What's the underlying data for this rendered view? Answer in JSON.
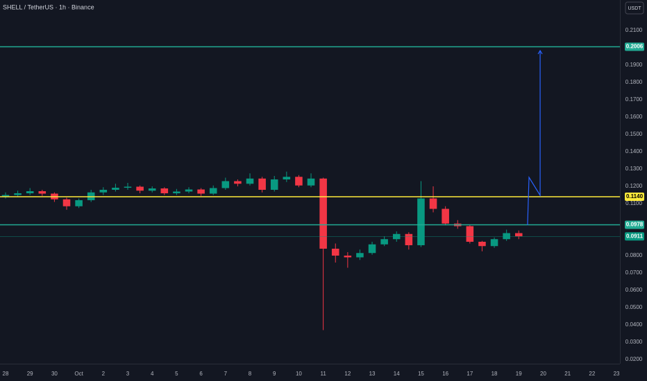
{
  "chart_data": {
    "type": "candlestick",
    "title": "SHELL / TetherUS · 1h · Binance",
    "currency_button": "USDT",
    "up_color": "#089981",
    "down_color": "#f23645",
    "grid": false,
    "candles": {
      "x": [
        0,
        0.5,
        1,
        1.5,
        2,
        2.5,
        3,
        3.5,
        4,
        4.5,
        5,
        5.5,
        6,
        6.5,
        7,
        7.5,
        8,
        8.5,
        9,
        9.5,
        10,
        10.5,
        11,
        11.5,
        12,
        12.5,
        13,
        13.5,
        14,
        14.5,
        15,
        15.5,
        16,
        16.5,
        17,
        17.5,
        18,
        18.5,
        19,
        19.5,
        20,
        20.5,
        21
      ],
      "open": [
        0.114,
        0.115,
        0.116,
        0.1172,
        0.1158,
        0.1125,
        0.1085,
        0.112,
        0.1165,
        0.118,
        0.1192,
        0.1198,
        0.1175,
        0.1188,
        0.116,
        0.117,
        0.1182,
        0.1158,
        0.119,
        0.123,
        0.1215,
        0.1245,
        0.118,
        0.124,
        0.1255,
        0.1205,
        0.1245,
        0.084,
        0.08,
        0.079,
        0.0815,
        0.0865,
        0.0895,
        0.0925,
        0.086,
        0.113,
        0.107,
        0.0985,
        0.097,
        0.088,
        0.0855,
        0.0895,
        0.093
      ],
      "high": [
        0.1165,
        0.1175,
        0.119,
        0.118,
        0.1165,
        0.1135,
        0.113,
        0.118,
        0.1195,
        0.1215,
        0.122,
        0.1205,
        0.12,
        0.1195,
        0.1185,
        0.1195,
        0.119,
        0.1205,
        0.125,
        0.124,
        0.1275,
        0.1255,
        0.126,
        0.1285,
        0.1265,
        0.1275,
        0.125,
        0.087,
        0.082,
        0.0835,
        0.088,
        0.091,
        0.094,
        0.0935,
        0.123,
        0.12,
        0.1085,
        0.1005,
        0.098,
        0.0885,
        0.0905,
        0.095,
        0.0945
      ],
      "low": [
        0.113,
        0.114,
        0.115,
        0.1145,
        0.111,
        0.1065,
        0.1075,
        0.111,
        0.115,
        0.117,
        0.118,
        0.116,
        0.1165,
        0.115,
        0.115,
        0.116,
        0.1145,
        0.115,
        0.118,
        0.12,
        0.1205,
        0.1165,
        0.117,
        0.1225,
        0.1195,
        0.1195,
        0.037,
        0.076,
        0.073,
        0.0775,
        0.0805,
        0.0855,
        0.088,
        0.0835,
        0.085,
        0.105,
        0.0975,
        0.0955,
        0.087,
        0.0825,
        0.0845,
        0.0885,
        0.0895
      ],
      "close": [
        0.115,
        0.116,
        0.1172,
        0.1158,
        0.1125,
        0.1085,
        0.112,
        0.1165,
        0.118,
        0.1192,
        0.1198,
        0.1175,
        0.1188,
        0.116,
        0.117,
        0.1182,
        0.1158,
        0.119,
        0.123,
        0.1215,
        0.1245,
        0.118,
        0.124,
        0.1255,
        0.1205,
        0.1245,
        0.084,
        0.08,
        0.079,
        0.0815,
        0.0865,
        0.0895,
        0.0925,
        0.086,
        0.113,
        0.107,
        0.0985,
        0.097,
        0.088,
        0.0855,
        0.0895,
        0.093,
        0.0911
      ]
    },
    "levels": [
      {
        "value": 0.2006,
        "label": "0.2006",
        "color": "#22ab94",
        "text_color": "#ffffff",
        "style": "solid"
      },
      {
        "value": 0.114,
        "label": "0.1140",
        "color": "#ffeb3b",
        "text_color": "#000000",
        "style": "solid"
      },
      {
        "value": 0.0978,
        "label": "0.0978",
        "color": "#22ab94",
        "text_color": "#ffffff",
        "style": "solid"
      },
      {
        "value": 0.0911,
        "label": "0.0911",
        "color": "#089981",
        "text_color": "#ffffff",
        "style": "thin"
      }
    ],
    "projection": {
      "x": [
        21.36,
        21.42,
        21.875,
        21.875
      ],
      "y": [
        0.0976,
        0.1252,
        0.1148,
        0.1984
      ],
      "color": "#2962ff"
    },
    "xlim": [
      -0.227,
      25.14
    ],
    "xticks": [
      {
        "value": 0,
        "label": "28"
      },
      {
        "value": 1,
        "label": "29"
      },
      {
        "value": 2,
        "label": "30"
      },
      {
        "value": 3,
        "label": "Oct"
      },
      {
        "value": 4,
        "label": "2"
      },
      {
        "value": 5,
        "label": "3"
      },
      {
        "value": 6,
        "label": "4"
      },
      {
        "value": 7,
        "label": "5"
      },
      {
        "value": 8,
        "label": "6"
      },
      {
        "value": 9,
        "label": "7"
      },
      {
        "value": 10,
        "label": "8"
      },
      {
        "value": 11,
        "label": "9"
      },
      {
        "value": 12,
        "label": "10"
      },
      {
        "value": 13,
        "label": "11"
      },
      {
        "value": 14,
        "label": "12"
      },
      {
        "value": 15,
        "label": "13"
      },
      {
        "value": 16,
        "label": "14"
      },
      {
        "value": 17,
        "label": "15"
      },
      {
        "value": 18,
        "label": "16"
      },
      {
        "value": 19,
        "label": "17"
      },
      {
        "value": 20,
        "label": "18"
      },
      {
        "value": 21,
        "label": "19"
      },
      {
        "value": 22,
        "label": "20"
      },
      {
        "value": 23,
        "label": "21"
      },
      {
        "value": 24,
        "label": "22"
      },
      {
        "value": 25,
        "label": "23"
      }
    ],
    "ylim": [
      0.0176,
      0.2276
    ],
    "yticks": [
      {
        "value": 0.21,
        "label": "0.2100"
      },
      {
        "value": 0.19,
        "label": "0.1900"
      },
      {
        "value": 0.18,
        "label": "0.1800"
      },
      {
        "value": 0.17,
        "label": "0.1700"
      },
      {
        "value": 0.16,
        "label": "0.1600"
      },
      {
        "value": 0.15,
        "label": "0.1500"
      },
      {
        "value": 0.14,
        "label": "0.1400"
      },
      {
        "value": 0.13,
        "label": "0.1300"
      },
      {
        "value": 0.12,
        "label": "0.1200"
      },
      {
        "value": 0.11,
        "label": "0.1100"
      },
      {
        "value": 0.08,
        "label": "0.0800"
      },
      {
        "value": 0.07,
        "label": "0.0700"
      },
      {
        "value": 0.06,
        "label": "0.0600"
      },
      {
        "value": 0.05,
        "label": "0.0500"
      },
      {
        "value": 0.04,
        "label": "0.0400"
      },
      {
        "value": 0.03,
        "label": "0.0300"
      },
      {
        "value": 0.02,
        "label": "0.0200"
      }
    ]
  }
}
